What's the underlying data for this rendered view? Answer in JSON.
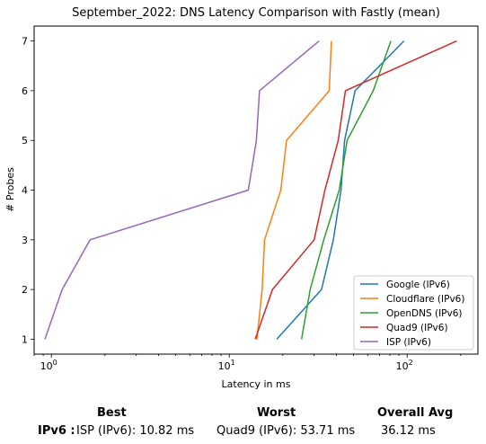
{
  "chart_data": {
    "type": "line",
    "title": "September_2022: DNS Latency Comparison with Fastly (mean)",
    "xlabel": "Latency in ms",
    "ylabel": "# Probes",
    "xscale": "log",
    "xlim": [
      0.8,
      250
    ],
    "ylim": [
      0.7,
      7.3
    ],
    "x_ticks": [
      {
        "value": 1,
        "label": "10",
        "exp": "0"
      },
      {
        "value": 10,
        "label": "10",
        "exp": "1"
      },
      {
        "value": 100,
        "label": "10",
        "exp": "2"
      }
    ],
    "y_ticks": [
      1,
      2,
      3,
      4,
      5,
      6,
      7
    ],
    "legend_position": "lower-right",
    "grid": false,
    "series": [
      {
        "name": "Google (IPv6)",
        "color": "#1f77b4",
        "x": [
          18.5,
          33.0,
          38.5,
          42.5,
          44.5,
          51.0,
          96.0
        ],
        "y": [
          1,
          2,
          3,
          4,
          5,
          6,
          7
        ]
      },
      {
        "name": "Cloudflare (IPv6)",
        "color": "#ff7f0e",
        "x": [
          14.3,
          15.3,
          15.8,
          19.5,
          21.0,
          36.5,
          37.5
        ],
        "y": [
          1,
          2,
          3,
          4,
          5,
          6,
          7
        ]
      },
      {
        "name": "OpenDNS (IPv6)",
        "color": "#2ca02c",
        "x": [
          25.5,
          28.5,
          34.0,
          41.5,
          46.0,
          64.5,
          81.0
        ],
        "y": [
          1,
          2,
          3,
          4,
          5,
          6,
          7
        ]
      },
      {
        "name": "Quad9 (IPv6)",
        "color": "#d62728",
        "x": [
          14.0,
          17.5,
          30.0,
          34.5,
          41.0,
          45.0,
          190.0
        ],
        "y": [
          1,
          2,
          3,
          4,
          5,
          6,
          7
        ]
      },
      {
        "name": "ISP (IPv6)",
        "color": "#9467bd",
        "x": [
          0.92,
          1.15,
          1.65,
          12.8,
          14.2,
          14.8,
          32.0
        ],
        "y": [
          1,
          2,
          3,
          4,
          5,
          6,
          7
        ]
      }
    ]
  },
  "summary": {
    "best_header": "Best",
    "worst_header": "Worst",
    "avg_header": "Overall Avg",
    "row_label": "IPv6 :",
    "best_value": "ISP (IPv6): 10.82 ms",
    "worst_value": "Quad9 (IPv6): 53.71 ms",
    "avg_value": "36.12 ms"
  }
}
